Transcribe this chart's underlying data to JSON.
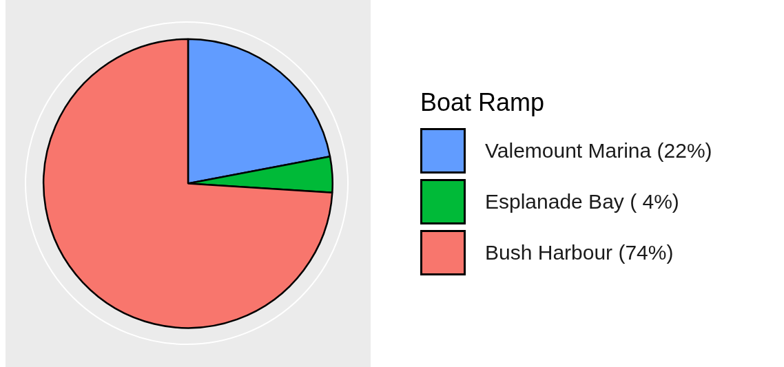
{
  "chart_data": {
    "type": "pie",
    "legend_title": "Boat Ramp",
    "categories": [
      "Valemount Marina (22%)",
      "Esplanade Bay ( 4%)",
      "Bush Harbour (74%)"
    ],
    "values": [
      22,
      4,
      74
    ],
    "colors": [
      "#619cff",
      "#00ba38",
      "#f8766d"
    ],
    "legend": "right"
  }
}
